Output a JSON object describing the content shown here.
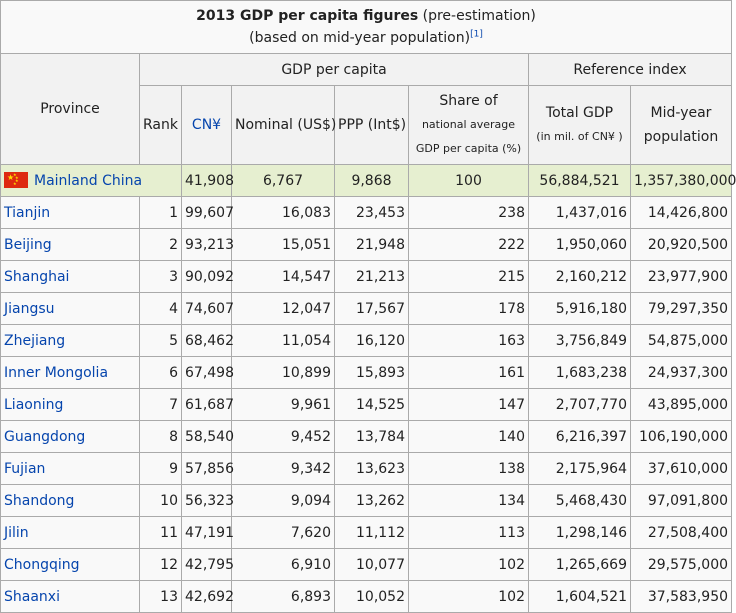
{
  "caption": {
    "title_bold": "2013 GDP per capita figures",
    "title_rest": " (pre-estimation)",
    "subtitle": "(based on mid-year population)",
    "footnote": "[1]"
  },
  "headers": {
    "province": "Province",
    "gdp_per_capita": "GDP per capita",
    "reference_index": "Reference index",
    "rank": "Rank",
    "cny": "CN¥",
    "nominal": "Nominal (US$)",
    "ppp": "PPP (Int$)",
    "share_line1": "Share of",
    "share_line2": "national average",
    "share_line3": "GDP per capita (%)",
    "total_line1": "Total GDP",
    "total_line2": "(in mil. of CN¥ )",
    "midyear_line1": "Mid-year",
    "midyear_line2": "population"
  },
  "mainland": {
    "name": "Mainland China",
    "cny": "41,908",
    "nominal": "6,767",
    "ppp": "9,868",
    "share": "100",
    "total": "56,884,521",
    "population": "1,357,380,000",
    "flag_icon": "china-flag-icon"
  },
  "rows": [
    {
      "province": "Tianjin",
      "rank": "1",
      "cny": "99,607",
      "nominal": "16,083",
      "ppp": "23,453",
      "share": "238",
      "total": "1,437,016",
      "population": "14,426,800"
    },
    {
      "province": "Beijing",
      "rank": "2",
      "cny": "93,213",
      "nominal": "15,051",
      "ppp": "21,948",
      "share": "222",
      "total": "1,950,060",
      "population": "20,920,500"
    },
    {
      "province": "Shanghai",
      "rank": "3",
      "cny": "90,092",
      "nominal": "14,547",
      "ppp": "21,213",
      "share": "215",
      "total": "2,160,212",
      "population": "23,977,900"
    },
    {
      "province": "Jiangsu",
      "rank": "4",
      "cny": "74,607",
      "nominal": "12,047",
      "ppp": "17,567",
      "share": "178",
      "total": "5,916,180",
      "population": "79,297,350"
    },
    {
      "province": "Zhejiang",
      "rank": "5",
      "cny": "68,462",
      "nominal": "11,054",
      "ppp": "16,120",
      "share": "163",
      "total": "3,756,849",
      "population": "54,875,000"
    },
    {
      "province": "Inner Mongolia",
      "rank": "6",
      "cny": "67,498",
      "nominal": "10,899",
      "ppp": "15,893",
      "share": "161",
      "total": "1,683,238",
      "population": "24,937,300"
    },
    {
      "province": "Liaoning",
      "rank": "7",
      "cny": "61,687",
      "nominal": "9,961",
      "ppp": "14,525",
      "share": "147",
      "total": "2,707,770",
      "population": "43,895,000"
    },
    {
      "province": "Guangdong",
      "rank": "8",
      "cny": "58,540",
      "nominal": "9,452",
      "ppp": "13,784",
      "share": "140",
      "total": "6,216,397",
      "population": "106,190,000"
    },
    {
      "province": "Fujian",
      "rank": "9",
      "cny": "57,856",
      "nominal": "9,342",
      "ppp": "13,623",
      "share": "138",
      "total": "2,175,964",
      "population": "37,610,000"
    },
    {
      "province": "Shandong",
      "rank": "10",
      "cny": "56,323",
      "nominal": "9,094",
      "ppp": "13,262",
      "share": "134",
      "total": "5,468,430",
      "population": "97,091,800"
    },
    {
      "province": "Jilin",
      "rank": "11",
      "cny": "47,191",
      "nominal": "7,620",
      "ppp": "11,112",
      "share": "113",
      "total": "1,298,146",
      "population": "27,508,400"
    },
    {
      "province": "Chongqing",
      "rank": "12",
      "cny": "42,795",
      "nominal": "6,910",
      "ppp": "10,077",
      "share": "102",
      "total": "1,265,669",
      "population": "29,575,000"
    },
    {
      "province": "Shaanxi",
      "rank": "13",
      "cny": "42,692",
      "nominal": "6,893",
      "ppp": "10,052",
      "share": "102",
      "total": "1,604,521",
      "population": "37,583,950"
    }
  ],
  "colors": {
    "link": "#0645ad",
    "highlight_row": "#e6efd0",
    "header_bg": "#f2f2f2",
    "cell_bg": "#f9f9f9",
    "border": "#aaaaaa"
  }
}
